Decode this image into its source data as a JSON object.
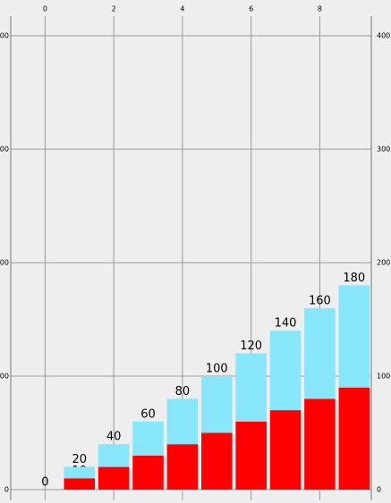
{
  "chart_data": {
    "type": "stacked_bar",
    "x": [
      0,
      1,
      2,
      3,
      4,
      5,
      6,
      7,
      8,
      9
    ],
    "series": [
      {
        "color": "#ff0000",
        "values": [
          0,
          10,
          20,
          30,
          40,
          50,
          60,
          70,
          80,
          90
        ]
      },
      {
        "color": "#87e6f9",
        "values": [
          0,
          10,
          20,
          30,
          40,
          50,
          60,
          70,
          80,
          90
        ]
      }
    ],
    "stack_totals": [
      0,
      20,
      40,
      60,
      80,
      100,
      120,
      140,
      160,
      180
    ],
    "xlim": [
      -1,
      9.5
    ],
    "xticks": [
      0,
      2,
      4,
      6,
      8
    ],
    "ylim": [
      0,
      400
    ],
    "yticks": [
      0,
      100,
      200,
      300,
      400
    ],
    "grid": true
  }
}
